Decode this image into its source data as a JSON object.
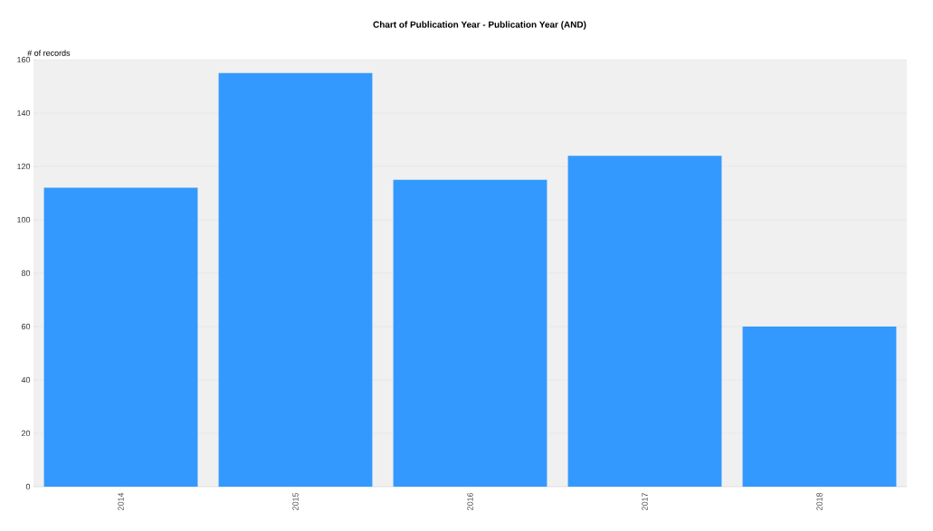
{
  "chart_data": {
    "type": "bar",
    "title": "Chart of Publication Year - Publication Year (AND)",
    "ylabel": "# of records",
    "categories": [
      "2014",
      "2015",
      "2016",
      "2017",
      "2018"
    ],
    "values": [
      112,
      155,
      115,
      124,
      60
    ],
    "color": "#3399ff",
    "ylim": [
      0,
      160
    ],
    "yticks": [
      0,
      20,
      40,
      60,
      80,
      100,
      120,
      140,
      160
    ],
    "grid": "y"
  }
}
